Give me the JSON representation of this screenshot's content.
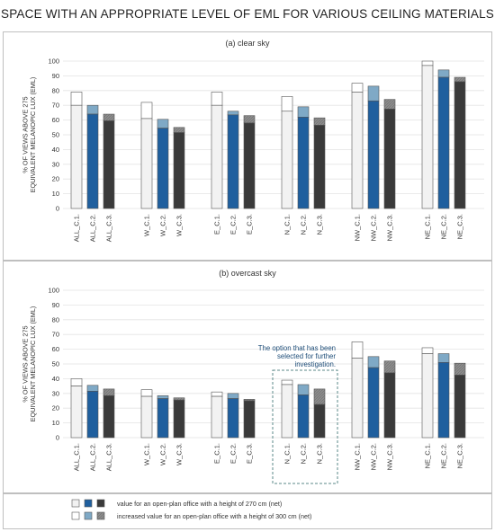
{
  "title": "SPACE WITH AN APPROPRIATE LEVEL OF EML FOR VARIOUS CEILING MATERIALS",
  "chart_data": [
    {
      "type": "bar",
      "subtitle": "(a) clear sky",
      "ylabel": "% OF VIEWS ABOVE 275 EQUIVALENT MELANOPIC LUX (EML)",
      "ylim": [
        0,
        100
      ],
      "yticks": [
        0,
        10,
        20,
        30,
        40,
        50,
        60,
        70,
        80,
        90,
        100
      ],
      "grid": true,
      "groups": [
        "ALL",
        "W",
        "E",
        "N",
        "NW",
        "NE"
      ],
      "categories": [
        "ALL_C.1.",
        "ALL_C.2.",
        "ALL_C.3.",
        "W_C.1.",
        "W_C.2.",
        "W_C.3.",
        "E_C.1.",
        "E_C.2.",
        "E_C.3.",
        "N_C.1.",
        "N_C.2.",
        "N_C.3.",
        "NW_C.1.",
        "NW_C.2.",
        "NW_C.3.",
        "NE_C.1.",
        "NE_C.2.",
        "NE_C.3."
      ],
      "series": [
        {
          "name": "value for an open-plan office with a height of 270 cm (net)",
          "values": [
            70,
            64,
            59.5,
            61,
            54.5,
            51.5,
            70,
            63.5,
            58,
            66,
            62,
            56.5,
            79,
            73,
            67.5,
            97,
            89,
            86
          ]
        },
        {
          "name": "increased value for an open-plan office with a height of 300 cm (net)",
          "values": [
            79,
            70,
            64,
            72,
            60.5,
            55,
            79,
            66,
            63,
            76,
            69,
            61.5,
            85,
            83,
            74,
            100,
            94,
            89
          ]
        }
      ]
    },
    {
      "type": "bar",
      "subtitle": "(b) overcast sky",
      "ylabel": "% OF VIEWS ABOVE 275 EQUIVALENT MELANOPIC LUX (EML)",
      "ylim": [
        0,
        100
      ],
      "yticks": [
        0,
        10,
        20,
        30,
        40,
        50,
        60,
        70,
        80,
        90,
        100
      ],
      "grid": true,
      "groups": [
        "ALL",
        "W",
        "E",
        "N",
        "NW",
        "NE"
      ],
      "categories": [
        "ALL_C.1.",
        "ALL_C.2.",
        "ALL_C.3.",
        "W_C.1.",
        "W_C.2.",
        "W_C.3.",
        "E_C.1.",
        "E_C.2.",
        "E_C.3.",
        "N_C.1.",
        "N_C.2.",
        "N_C.3.",
        "NW_C.1.",
        "NW_C.2.",
        "NW_C.3.",
        "NE_C.1.",
        "NE_C.2.",
        "NE_C.3."
      ],
      "series": [
        {
          "name": "value for an open-plan office with a height of 270 cm (net)",
          "values": [
            35,
            31.5,
            28.5,
            28,
            26.5,
            25.5,
            28,
            26.5,
            25,
            36,
            29,
            22.5,
            54,
            47.5,
            44,
            57,
            51,
            42.5
          ]
        },
        {
          "name": "increased value for an open-plan office with a height of 300 cm (net)",
          "values": [
            40,
            35.5,
            33,
            32.5,
            28.5,
            27,
            31,
            30,
            26,
            39,
            36,
            33,
            65,
            55,
            52,
            61,
            57,
            50.5
          ]
        }
      ],
      "annotation": {
        "text": [
          "The option that has been",
          "selected for further",
          "investigation."
        ],
        "group": "N"
      }
    }
  ],
  "legend": {
    "items": [
      {
        "text": "value for an open-plan office with a height of 270 cm (net)",
        "colors": [
          "#f2f2f2",
          "#1f5f9e",
          "#3a3a3a"
        ]
      },
      {
        "text": "increased value for an open-plan office with a height of 300 cm (net)",
        "colors": [
          "#ffffff",
          "#7fa9c6",
          "#8c8c8c"
        ]
      }
    ]
  },
  "colors": {
    "c1_base": "#f2f2f2",
    "c2_base": "#1f5f9e",
    "c3_base": "#3a3a3a",
    "c1_increase": "#ffffff",
    "c2_increase": "#7fa9c6",
    "c3_increase": "#8c8c8c",
    "annotation": "#1f4e79",
    "grid": "#e3e3e3"
  }
}
